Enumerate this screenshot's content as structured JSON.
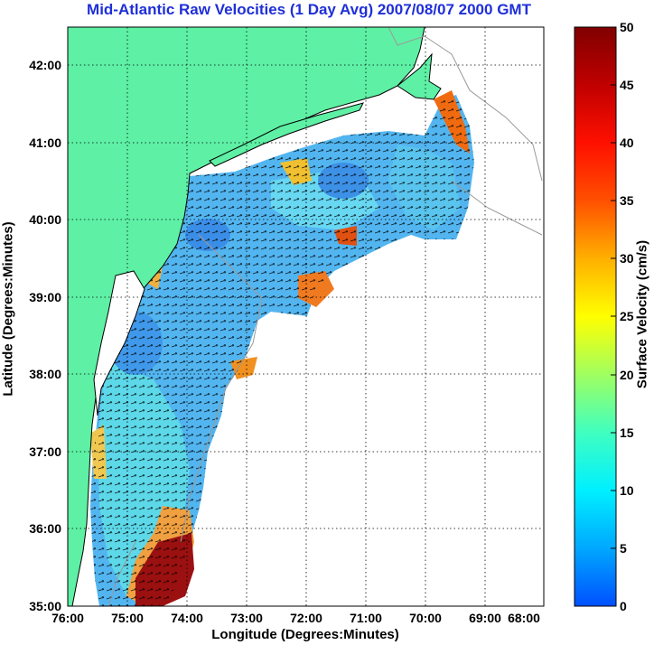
{
  "title": "Mid-Atlantic Raw Velocities (1 Day Avg) 2007/08/07 2000 GMT",
  "axes": {
    "xlabel": "Longitude (Degrees:Minutes)",
    "ylabel": "Latitude (Degrees:Minutes)",
    "xticks": [
      "76:00",
      "75:00",
      "74:00",
      "73:00",
      "72:00",
      "71:00",
      "70:00",
      "69:00",
      "68:00"
    ],
    "yticks": [
      "42:00",
      "41:00",
      "40:00",
      "39:00",
      "38:00",
      "37:00",
      "36:00",
      "35:00"
    ]
  },
  "colorbar": {
    "label": "Surface Velocity (cm/s)",
    "ticks": [
      "50",
      "45",
      "40",
      "35",
      "30",
      "25",
      "20",
      "15",
      "10",
      "5",
      "0"
    ],
    "range": [
      0,
      50
    ]
  },
  "colors": {
    "land": "#5ef0a5",
    "water_outside": "#ffffff",
    "title": "#1f2fd8",
    "grid": "#000000"
  }
}
